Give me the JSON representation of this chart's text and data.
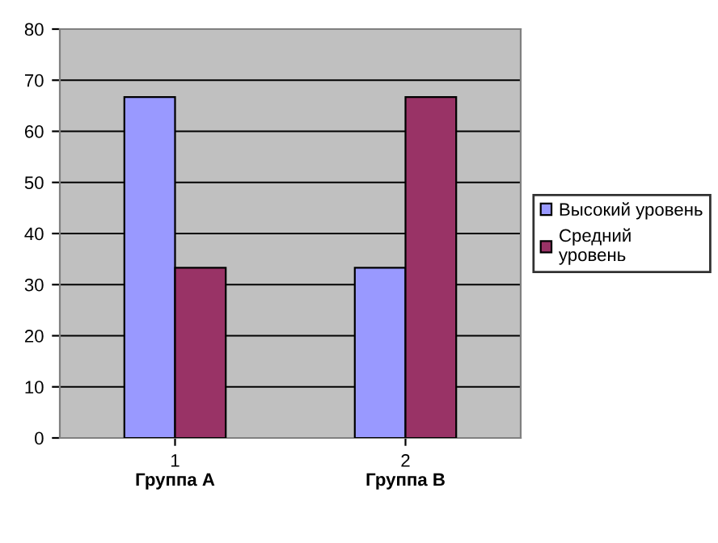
{
  "chart_data": {
    "type": "bar",
    "categories": [
      "1\nГруппа А",
      "2\nГруппа В"
    ],
    "series": [
      {
        "name": "Высокий уровень",
        "color": "#9999ff",
        "values": [
          66.7,
          33.3
        ]
      },
      {
        "name": "Средний\nуровень",
        "color": "#993366",
        "values": [
          33.3,
          66.7
        ]
      }
    ],
    "ylim": [
      0,
      80
    ],
    "yticks": [
      0,
      10,
      20,
      30,
      40,
      50,
      60,
      70,
      80
    ],
    "grid": "y",
    "legend": "right"
  }
}
